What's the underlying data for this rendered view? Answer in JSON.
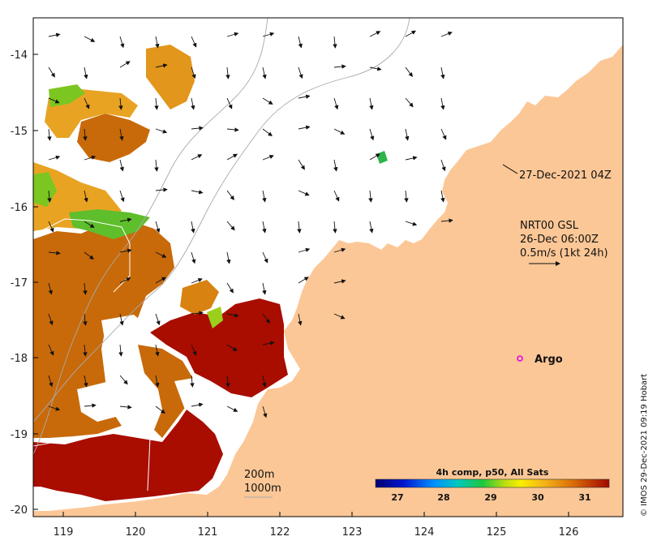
{
  "axes": {
    "x_ticks": [
      "119",
      "120",
      "121",
      "122",
      "123",
      "124",
      "125",
      "126"
    ],
    "y_ticks": [
      "-14",
      "-15",
      "-16",
      "-17",
      "-18",
      "-19",
      "-20"
    ]
  },
  "annotations": {
    "date_label": "27-Dec-2021 04Z",
    "model_line1": "NRT00 GSL",
    "model_line2": "26-Dec 06:00Z",
    "model_line3": "0.5m/s (1kt 24h)",
    "argo_label": "Argo",
    "contour_200": "200m",
    "contour_1000": "1000m",
    "credit": "© IMOS 29-Dec-2021 09:19 Hobart"
  },
  "colorbar": {
    "title": "4h comp, p50, All Sats",
    "ticks": [
      "27",
      "28",
      "29",
      "30",
      "31"
    ]
  },
  "colors": {
    "land": "#fcc796",
    "sst_hot": "#a80d00",
    "sst_warm": "#c86a0a",
    "sst_mid": "#e9a323",
    "sst_cool": "#7cc621",
    "argo": "#e800e8"
  },
  "current_arrows": [
    [
      1,
      -0.2
    ],
    [
      1,
      0.5
    ],
    [
      0.3,
      1
    ],
    [
      0.2,
      1
    ],
    [
      0.4,
      0.9
    ],
    [
      1,
      -0.3
    ],
    [
      1,
      -0.3
    ],
    [
      0.2,
      0.8
    ],
    [
      0.1,
      1
    ],
    [
      0.8,
      -0.4
    ],
    [
      0.9,
      -0.5
    ],
    [
      1,
      -0.4
    ],
    [
      0.5,
      0.8
    ],
    [
      0.2,
      1
    ],
    [
      1,
      -0.6
    ],
    [
      0.9,
      -0.2
    ],
    [
      0.3,
      0.9
    ],
    [
      0.1,
      1
    ],
    [
      0.2,
      0.9
    ],
    [
      0.3,
      0.9
    ],
    [
      1,
      -0.1
    ],
    [
      1,
      0.2
    ],
    [
      0.6,
      0.8
    ],
    [
      0.2,
      1
    ],
    [
      0.9,
      0.4
    ],
    [
      0.4,
      0.9
    ],
    [
      0.1,
      1
    ],
    [
      0.1,
      1
    ],
    [
      0.2,
      1
    ],
    [
      0.4,
      0.9
    ],
    [
      0.8,
      0.5
    ],
    [
      1,
      -0.2
    ],
    [
      0.3,
      1
    ],
    [
      0.2,
      1
    ],
    [
      0.6,
      0.7
    ],
    [
      0.2,
      1
    ],
    [
      0.1,
      1
    ],
    [
      0.1,
      1
    ],
    [
      0.2,
      1
    ],
    [
      0.9,
      0.3
    ],
    [
      1,
      -0.1
    ],
    [
      1,
      0.1
    ],
    [
      0.8,
      0.6
    ]
  ]
}
